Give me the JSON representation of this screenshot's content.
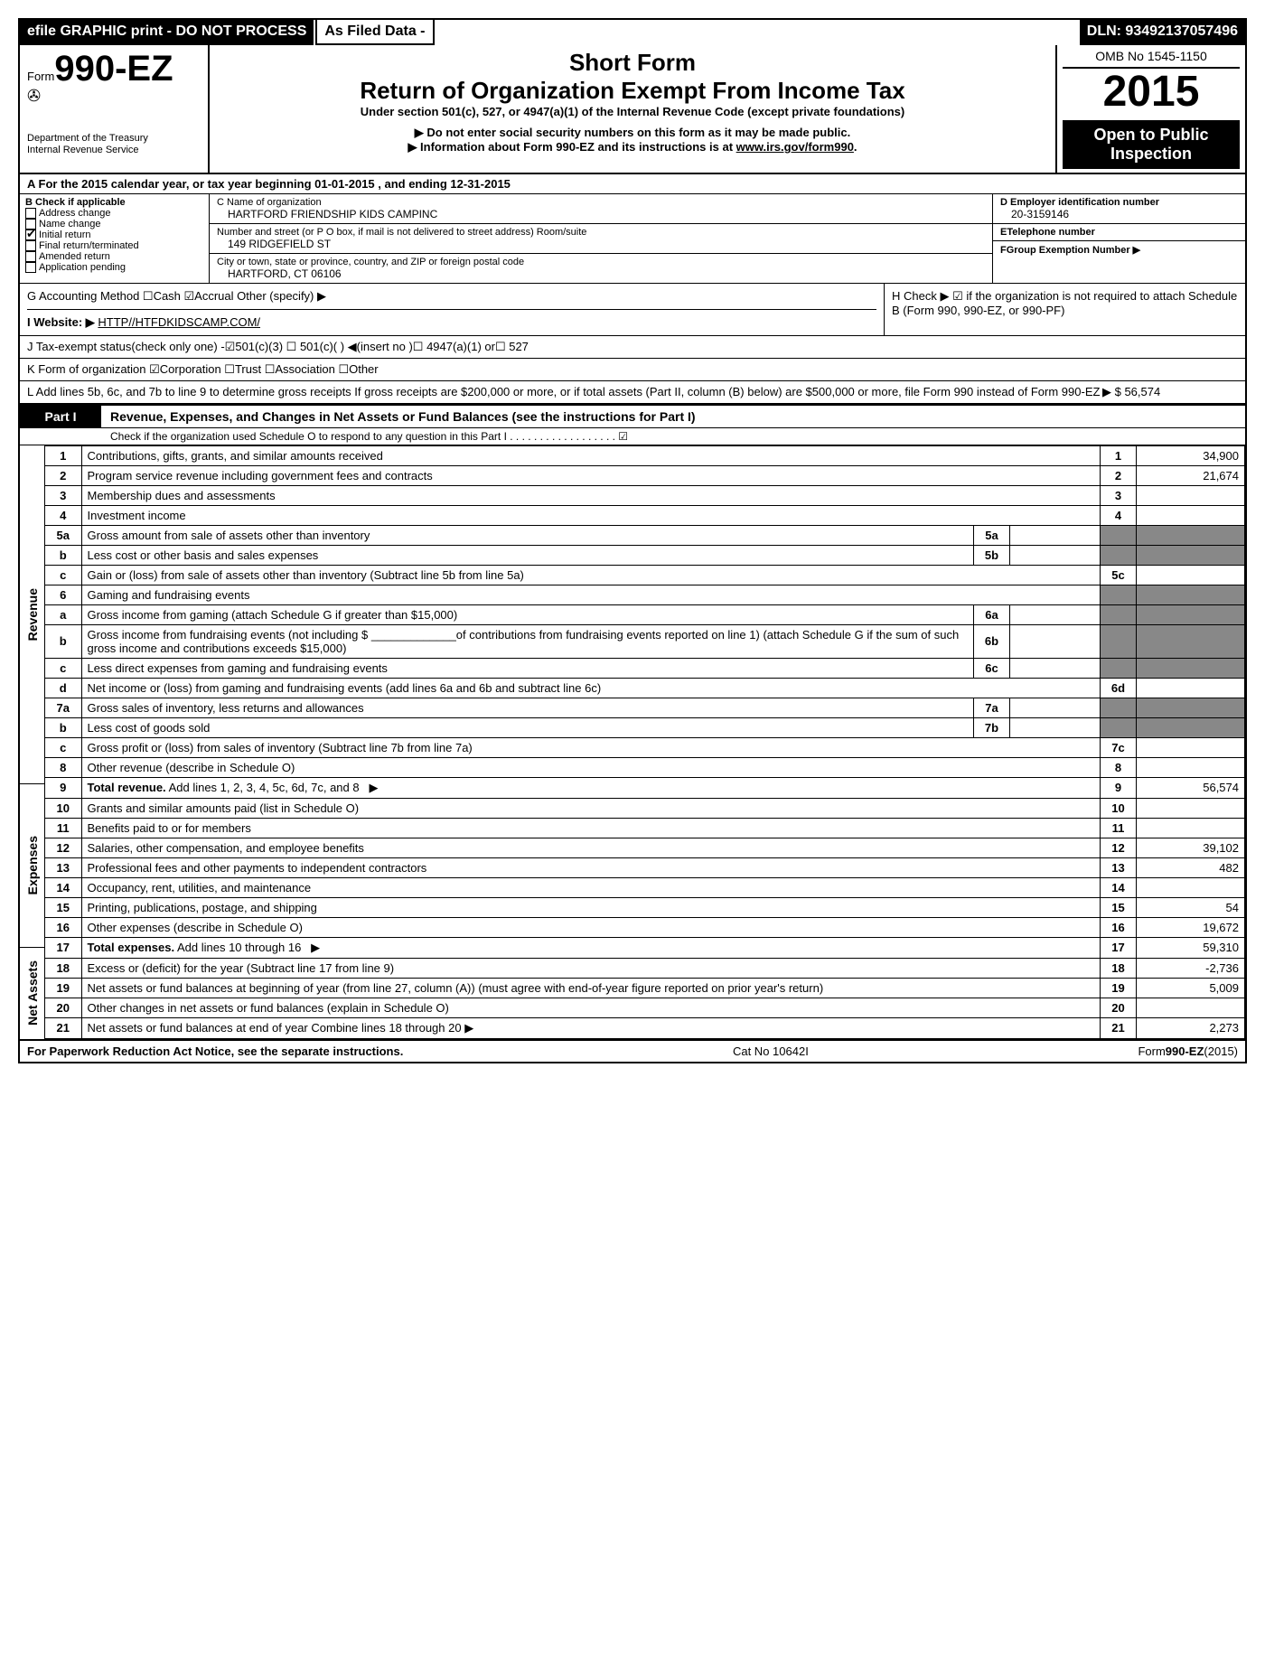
{
  "topbar": {
    "efile": "efile GRAPHIC print - DO NOT PROCESS",
    "asfiled": "As Filed Data -",
    "dln": "DLN: 93492137057496"
  },
  "header": {
    "form_prefix": "Form",
    "form_number": "990-EZ",
    "dept1": "Department of the Treasury",
    "dept2": "Internal Revenue Service",
    "short_form": "Short Form",
    "return_title": "Return of Organization Exempt From Income Tax",
    "subtitle": "Under section 501(c), 527, or 4947(a)(1) of the Internal Revenue Code (except private foundations)",
    "notice1": "▶ Do not enter social security numbers on this form as it may be made public.",
    "notice2": "▶ Information about Form 990-EZ and its instructions is at ",
    "notice2_url": "www.irs.gov/form990",
    "omb": "OMB No 1545-1150",
    "year": "2015",
    "open1": "Open to Public",
    "open2": "Inspection"
  },
  "rowA": "A  For the 2015 calendar year, or tax year beginning 01-01-2015           , and ending 12-31-2015",
  "sectionB": {
    "title": "B  Check if applicable",
    "opts": [
      "Address change",
      "Name change",
      "Initial return",
      "Final return/terminated",
      "Amended return",
      "Application pending"
    ],
    "checked": [
      false,
      false,
      true,
      false,
      false,
      false
    ]
  },
  "sectionC": {
    "name_label": "C Name of organization",
    "name": "HARTFORD FRIENDSHIP KIDS CAMPINC",
    "street_label": "Number and street (or P  O  box, if mail is not delivered to street address) Room/suite",
    "street": "149 RIDGEFIELD ST",
    "city_label": "City or town, state or province, country, and ZIP or foreign postal code",
    "city": "HARTFORD, CT  06106"
  },
  "sectionD": {
    "d_label": "D Employer identification number",
    "d_val": "20-3159146",
    "e_label": "ETelephone number",
    "f_label": "FGroup Exemption Number    ▶"
  },
  "rowG": "G Accounting Method   ☐Cash  ☑Accrual   Other (specify) ▶",
  "rowH": "H  Check ▶ ☑ if the organization is not required to attach Schedule B (Form 990, 990-EZ, or 990-PF)",
  "rowI_label": "I Website: ▶",
  "rowI_url": "HTTP//HTFDKIDSCAMP.COM/",
  "rowJ": "J Tax-exempt status(check only one) -☑501(c)(3)  ☐ 501(c)(  ) ◀(insert no )☐ 4947(a)(1) or☐ 527",
  "rowK": "K Form of organization   ☑Corporation  ☐Trust  ☐Association  ☐Other",
  "rowL": "L Add lines 5b, 6c, and 7b to line 9 to determine gross receipts  If gross receipts are $200,000 or more, or if total assets (Part II, column (B) below) are $500,000 or more, file Form 990 instead of Form 990-EZ",
  "rowL_val": "▶ $ 56,574",
  "part1": {
    "label": "Part I",
    "title": "Revenue, Expenses, and Changes in Net Assets or Fund Balances (see the instructions for Part I)",
    "sub": "Check if the organization used Schedule O to respond to any question in this Part I  .  .  .  .  .  .  .  .  .  .  .  .  .  .  .  .  .  .  ☑"
  },
  "lines": [
    {
      "n": "1",
      "desc": "Contributions, gifts, grants, and similar amounts received",
      "num": "1",
      "val": "34,900"
    },
    {
      "n": "2",
      "desc": "Program service revenue including government fees and contracts",
      "num": "2",
      "val": "21,674"
    },
    {
      "n": "3",
      "desc": "Membership dues and assessments",
      "num": "3",
      "val": ""
    },
    {
      "n": "4",
      "desc": "Investment income",
      "num": "4",
      "val": ""
    },
    {
      "n": "5a",
      "desc": "Gross amount from sale of assets other than inventory",
      "sub": "5a",
      "subval": "",
      "shade": true
    },
    {
      "n": "b",
      "desc": "Less  cost or other basis and sales expenses",
      "sub": "5b",
      "subval": "",
      "shade": true
    },
    {
      "n": "c",
      "desc": "Gain or (loss) from sale of assets other than inventory (Subtract line 5b from line 5a)",
      "num": "5c",
      "val": ""
    },
    {
      "n": "6",
      "desc": "Gaming and fundraising events",
      "shade_all": true
    },
    {
      "n": "a",
      "desc": "Gross income from gaming (attach Schedule G if greater than $15,000)",
      "sub": "6a",
      "subval": "",
      "shade": true
    },
    {
      "n": "b",
      "desc": "Gross income from fundraising events (not including $ _____________of contributions from fundraising events reported on line 1) (attach Schedule G if the sum of such gross income and contributions exceeds $15,000)",
      "sub": "6b",
      "subval": "",
      "shade": true
    },
    {
      "n": "c",
      "desc": "Less  direct expenses from gaming and fundraising events",
      "sub": "6c",
      "subval": "",
      "shade": true
    },
    {
      "n": "d",
      "desc": "Net income or (loss) from gaming and fundraising events (add lines 6a and 6b and subtract line 6c)",
      "num": "6d",
      "val": ""
    },
    {
      "n": "7a",
      "desc": "Gross sales of inventory, less returns and allowances",
      "sub": "7a",
      "subval": "",
      "shade": true
    },
    {
      "n": "b",
      "desc": "Less  cost of goods sold",
      "sub": "7b",
      "subval": "",
      "shade": true
    },
    {
      "n": "c",
      "desc": "Gross profit or (loss) from sales of inventory (Subtract line 7b from line 7a)",
      "num": "7c",
      "val": ""
    },
    {
      "n": "8",
      "desc": "Other revenue (describe in Schedule O)",
      "num": "8",
      "val": ""
    },
    {
      "n": "9",
      "desc": "Total revenue. Add lines 1, 2, 3, 4, 5c, 6d, 7c, and 8",
      "num": "9",
      "val": "56,574",
      "bold": true,
      "arrow": true
    },
    {
      "n": "10",
      "desc": "Grants and similar amounts paid (list in Schedule O)",
      "num": "10",
      "val": ""
    },
    {
      "n": "11",
      "desc": "Benefits paid to or for members",
      "num": "11",
      "val": ""
    },
    {
      "n": "12",
      "desc": "Salaries, other compensation, and employee benefits",
      "num": "12",
      "val": "39,102"
    },
    {
      "n": "13",
      "desc": "Professional fees and other payments to independent contractors",
      "num": "13",
      "val": "482"
    },
    {
      "n": "14",
      "desc": "Occupancy, rent, utilities, and maintenance",
      "num": "14",
      "val": ""
    },
    {
      "n": "15",
      "desc": "Printing, publications, postage, and shipping",
      "num": "15",
      "val": "54"
    },
    {
      "n": "16",
      "desc": "Other expenses (describe in Schedule O)",
      "num": "16",
      "val": "19,672"
    },
    {
      "n": "17",
      "desc": "Total expenses. Add lines 10 through 16",
      "num": "17",
      "val": "59,310",
      "bold": true,
      "arrow": true
    },
    {
      "n": "18",
      "desc": "Excess or (deficit) for the year (Subtract line 17 from line 9)",
      "num": "18",
      "val": "-2,736"
    },
    {
      "n": "19",
      "desc": "Net assets or fund balances at beginning of year (from line 27, column (A)) (must agree with end-of-year figure reported on prior year's return)",
      "num": "19",
      "val": "5,009"
    },
    {
      "n": "20",
      "desc": "Other changes in net assets or fund balances (explain in Schedule O)",
      "num": "20",
      "val": ""
    },
    {
      "n": "21",
      "desc": "Net assets or fund balances at end of year  Combine lines 18 through 20",
      "num": "21",
      "val": "2,273",
      "arrow": true
    }
  ],
  "vlabels": [
    "Revenue",
    "Expenses",
    "Net Assets"
  ],
  "footer": {
    "left": "For Paperwork Reduction Act Notice, see the separate instructions.",
    "mid": "Cat No 10642I",
    "right": "Form990-EZ(2015)"
  }
}
